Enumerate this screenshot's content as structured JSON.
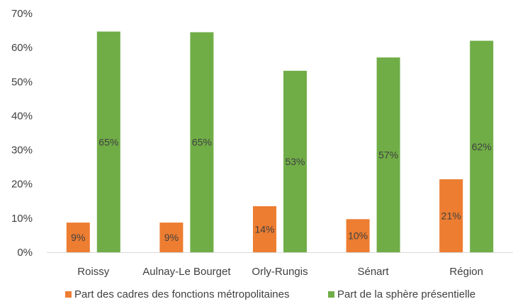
{
  "chart_data": {
    "type": "bar",
    "categories": [
      "Roissy",
      "Aulnay-Le Bourget",
      "Orly-Rungis",
      "Sénart",
      "Région"
    ],
    "series": [
      {
        "name": "Part des cadres des fonctions métropolitaines",
        "color": "#ED7D31",
        "values": [
          8.7,
          8.7,
          13.5,
          9.7,
          21.4
        ],
        "labels": [
          "9%",
          "9%",
          "14%",
          "10%",
          "21%"
        ]
      },
      {
        "name": "Part de la sphère présentielle",
        "color": "#70AD47",
        "values": [
          64.7,
          64.5,
          53.2,
          57.1,
          62.0
        ],
        "labels": [
          "65%",
          "65%",
          "53%",
          "57%",
          "62%"
        ]
      }
    ],
    "yticks": [
      "0%",
      "10%",
      "20%",
      "30%",
      "40%",
      "50%",
      "60%",
      "70%"
    ],
    "ylim": [
      0,
      70
    ],
    "grid": false,
    "legend_position": "bottom",
    "title": "",
    "xlabel": "",
    "ylabel": ""
  }
}
